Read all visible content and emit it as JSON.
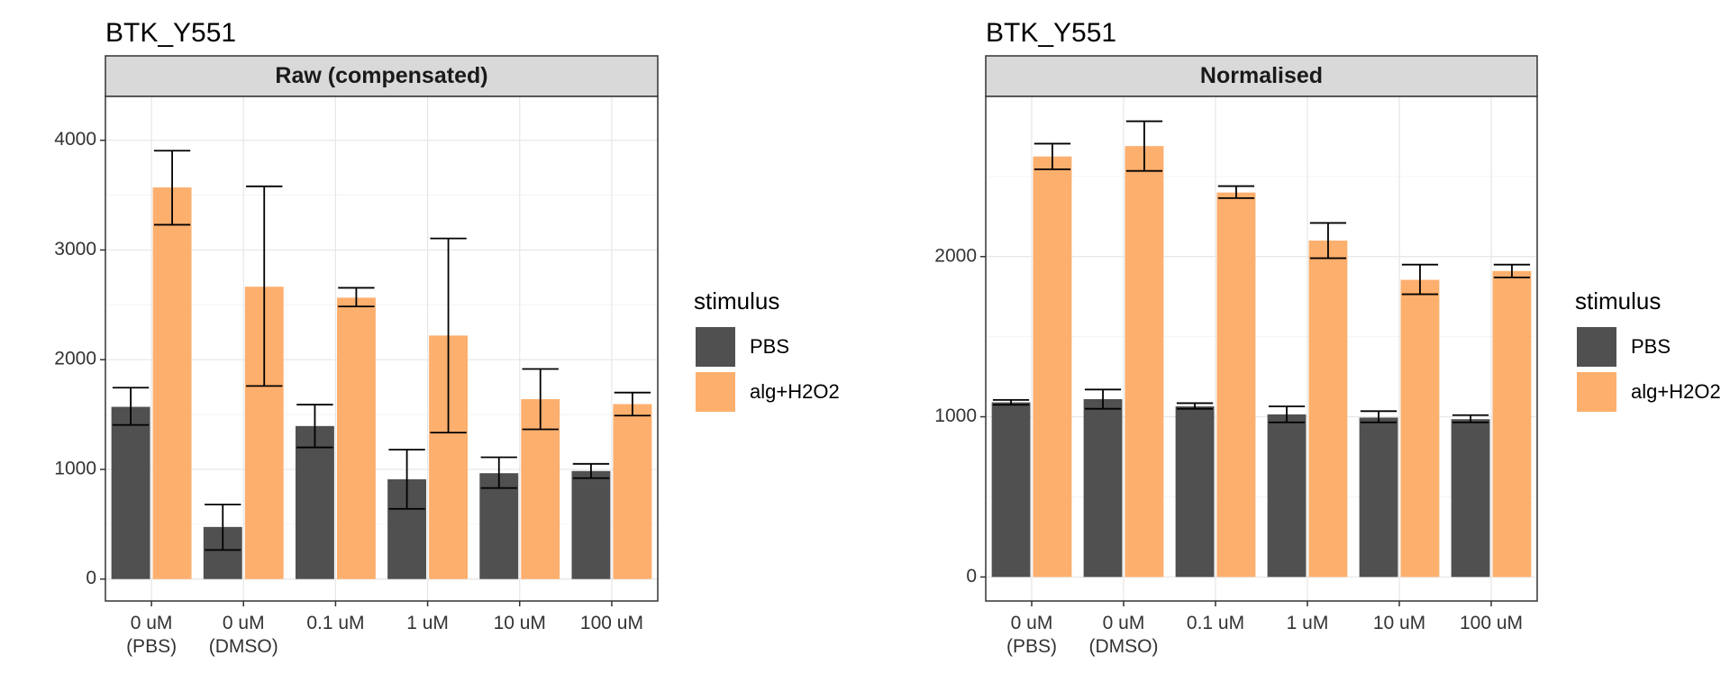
{
  "colors": {
    "PBS": "#505050",
    "alg+H2O2": "#FDAF6E"
  },
  "legend": {
    "title": "stimulus",
    "items": [
      "PBS",
      "alg+H2O2"
    ]
  },
  "chart_data": [
    {
      "type": "bar",
      "title": "BTK_Y551",
      "facet": "Raw (compensated)",
      "categories": [
        "0 uM\n(PBS)",
        "0 uM\n(DMSO)",
        "0.1 uM",
        "1 uM",
        "10 uM",
        "100 uM"
      ],
      "ylim": [
        -200,
        4400
      ],
      "yticks": [
        0,
        1000,
        2000,
        3000,
        4000
      ],
      "grid": true,
      "legend_position": "right",
      "series": [
        {
          "name": "PBS",
          "values": [
            1570,
            475,
            1395,
            910,
            965,
            985
          ],
          "err_low": [
            1405,
            265,
            1200,
            640,
            830,
            920
          ],
          "err_high": [
            1745,
            680,
            1590,
            1180,
            1110,
            1050
          ]
        },
        {
          "name": "alg+H2O2",
          "values": [
            3570,
            2665,
            2565,
            2220,
            1640,
            1595
          ],
          "err_low": [
            3230,
            1760,
            2485,
            1335,
            1365,
            1490
          ],
          "err_high": [
            3905,
            3580,
            2655,
            3105,
            1915,
            1700
          ]
        }
      ]
    },
    {
      "type": "bar",
      "title": "BTK_Y551",
      "facet": "Normalised",
      "categories": [
        "0 uM\n(PBS)",
        "0 uM\n(DMSO)",
        "0.1 uM",
        "1 uM",
        "10 uM",
        "100 uM"
      ],
      "ylim": [
        -150,
        3000
      ],
      "yticks": [
        0,
        1000,
        2000
      ],
      "grid": true,
      "legend_position": "right",
      "series": [
        {
          "name": "PBS",
          "values": [
            1090,
            1110,
            1065,
            1015,
            995,
            985
          ],
          "err_low": [
            1075,
            1050,
            1050,
            965,
            965,
            965
          ],
          "err_high": [
            1105,
            1170,
            1085,
            1065,
            1035,
            1010
          ]
        },
        {
          "name": "alg+H2O2",
          "values": [
            2625,
            2690,
            2400,
            2100,
            1855,
            1910
          ],
          "err_low": [
            2545,
            2535,
            2365,
            1990,
            1765,
            1870
          ],
          "err_high": [
            2705,
            2845,
            2440,
            2210,
            1950,
            1950
          ]
        }
      ]
    }
  ]
}
